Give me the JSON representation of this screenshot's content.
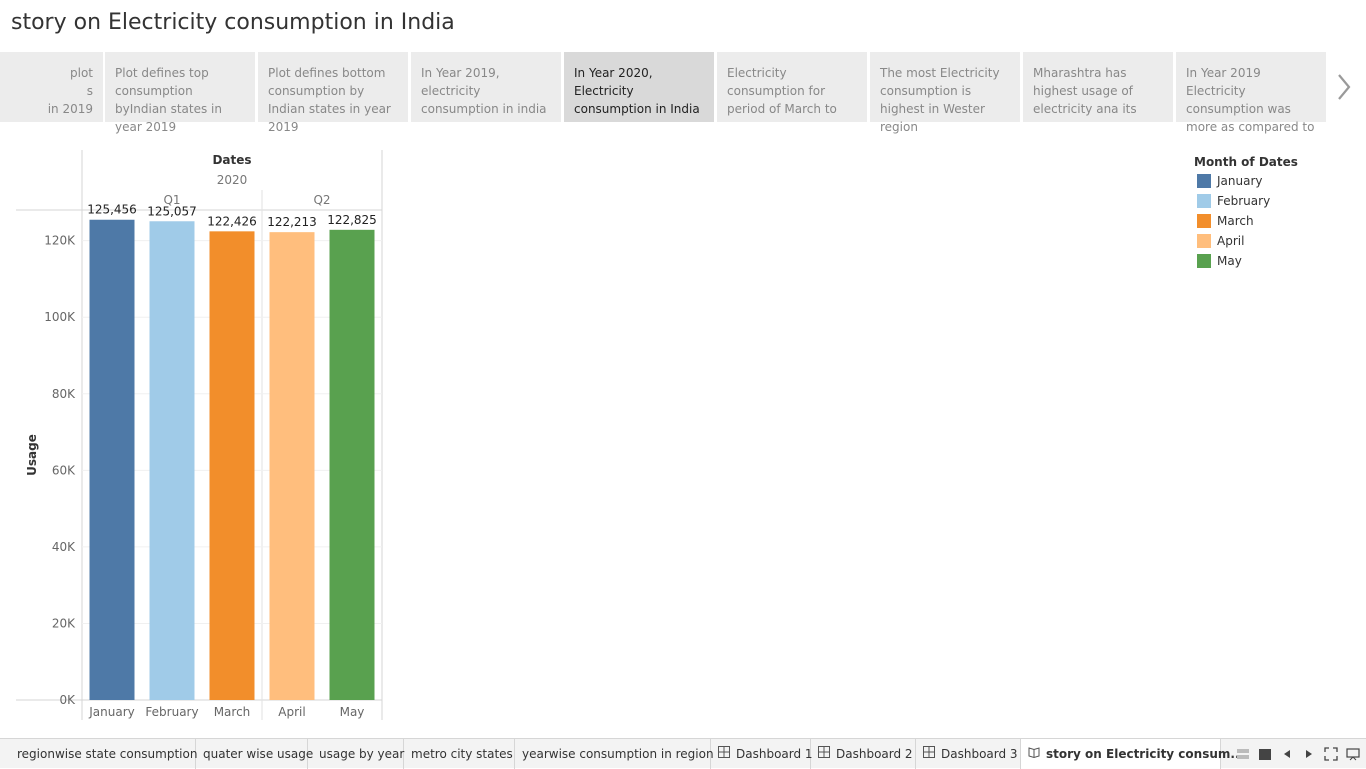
{
  "story": {
    "title": "story on Electricity consumption in India"
  },
  "story_points": [
    {
      "text": "plot\ns\nin 2019",
      "clipped": true
    },
    {
      "text": "Plot defines top consumption byIndian states in year  2019"
    },
    {
      "text": "Plot defines bottom consumption by Indian states in year 2019"
    },
    {
      "text": "In Year 2019, electricity consumption in india"
    },
    {
      "text": "In Year 2020, Electricity consumption in India",
      "active": true
    },
    {
      "text": "Electricity consumption for period of March to"
    },
    {
      "text": "The most Electricity consumption is highest in Wester region"
    },
    {
      "text": "Mharashtra  has highest usage of electricity  ana its"
    },
    {
      "text": "In Year 2019 Electricity consumption was more as compared to"
    }
  ],
  "chart_data": {
    "type": "bar",
    "title": "",
    "header": {
      "field": "Dates",
      "year": "2020",
      "quarters": [
        {
          "label": "Q1",
          "count": 3
        },
        {
          "label": "Q2",
          "count": 2
        }
      ]
    },
    "categories": [
      "January",
      "February",
      "March",
      "April",
      "May"
    ],
    "values": [
      125456,
      125057,
      122426,
      122213,
      122825
    ],
    "value_labels": [
      "125,456",
      "125,057",
      "122,426",
      "122,213",
      "122,825"
    ],
    "colors": [
      "#4e79a7",
      "#a0cbe8",
      "#f28e2b",
      "#ffbe7d",
      "#59a14f"
    ],
    "xlabel": "",
    "ylabel": "Usage",
    "ylim": [
      0,
      128000
    ],
    "yticks": [
      0,
      20000,
      40000,
      60000,
      80000,
      100000,
      120000
    ],
    "ytick_labels": [
      "0K",
      "20K",
      "40K",
      "60K",
      "80K",
      "100K",
      "120K"
    ],
    "grid": true,
    "legend": {
      "title": "Month of Dates",
      "position": "right",
      "items": [
        {
          "label": "January",
          "color": "#4e79a7"
        },
        {
          "label": "February",
          "color": "#a0cbe8"
        },
        {
          "label": "March",
          "color": "#f28e2b"
        },
        {
          "label": "April",
          "color": "#ffbe7d"
        },
        {
          "label": "May",
          "color": "#59a14f"
        }
      ]
    }
  },
  "bottom_tabs": [
    {
      "label": "regionwise state consumption"
    },
    {
      "label": "quater wise usage"
    },
    {
      "label": "usage by year"
    },
    {
      "label": "metro city states"
    },
    {
      "label": "yearwise consumption in region"
    },
    {
      "label": "Dashboard 1",
      "icon": "dashboard-icon"
    },
    {
      "label": "Dashboard 2",
      "icon": "dashboard-icon"
    },
    {
      "label": "Dashboard 3",
      "icon": "dashboard-icon"
    },
    {
      "label": "story on Electricity consum...",
      "icon": "story-icon",
      "active": true
    }
  ],
  "controls": [
    "sheet-sorter-icon",
    "filmstrip-icon",
    "previous-sheet-icon",
    "next-sheet-icon",
    "fit-icon",
    "presentation-mode-icon"
  ]
}
